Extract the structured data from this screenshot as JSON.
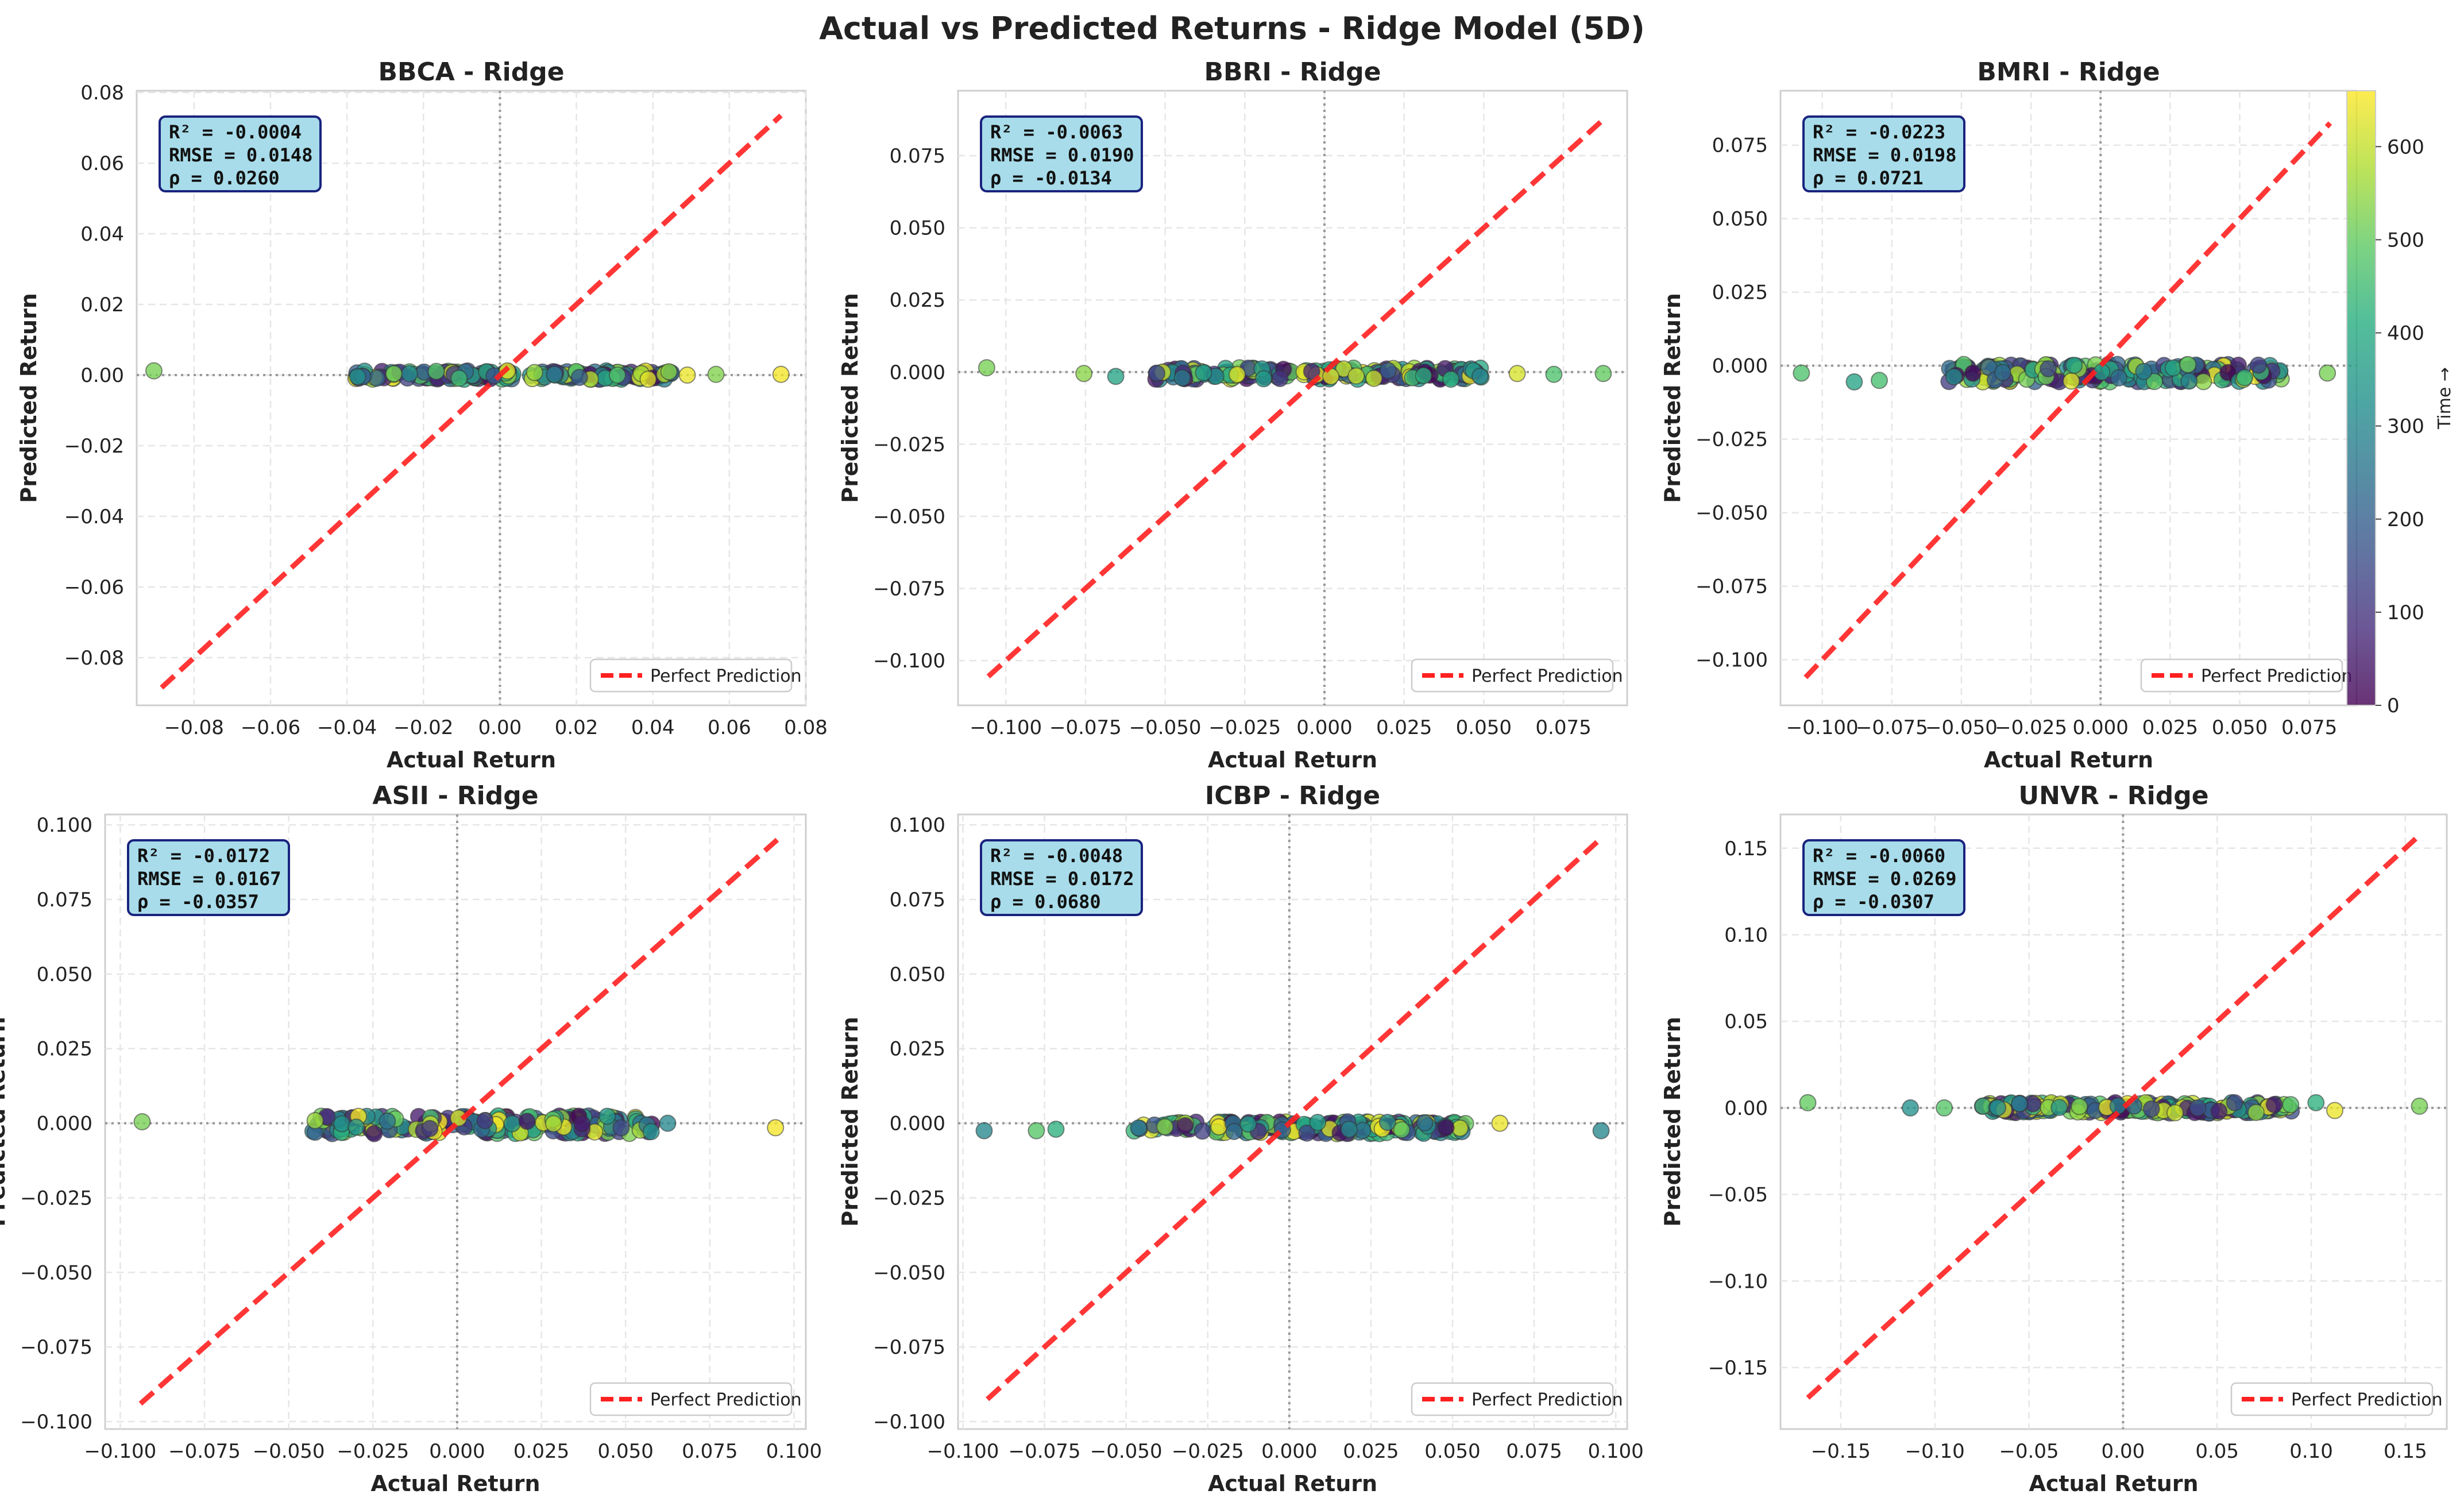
{
  "title": "Actual vs Predicted Returns - Ridge Model (5D)",
  "colors": {
    "perfect_line": "#ff2020",
    "stats_box_fill": "#a8dcea",
    "stats_box_edge": "#1a237e",
    "grid": "#e6e6e6",
    "zero_line": "#999999"
  },
  "colorbar": {
    "label": "Time →",
    "ticks": [
      0,
      100,
      200,
      300,
      400,
      500,
      600
    ],
    "range": [
      0,
      660
    ],
    "colormap": "viridis"
  },
  "chart_data": [
    {
      "type": "scatter",
      "title": "BBCA - Ridge",
      "xlabel": "Actual Return",
      "ylabel": "Predicted Return",
      "xlim": [
        -0.095,
        0.08
      ],
      "ylim": [
        -0.0935,
        0.0805
      ],
      "xticks": [
        "−0.08",
        "−0.06",
        "−0.04",
        "−0.02",
        "0.00",
        "0.02",
        "0.04",
        "0.06",
        "0.08"
      ],
      "xtick_values": [
        -0.08,
        -0.06,
        -0.04,
        -0.02,
        0.0,
        0.02,
        0.04,
        0.06,
        0.08
      ],
      "yticks": [
        "0.08",
        "0.06",
        "0.04",
        "0.02",
        "0.00",
        "−0.02",
        "−0.04",
        "−0.06",
        "−0.08"
      ],
      "ytick_values": [
        0.08,
        0.06,
        0.04,
        0.02,
        0.0,
        -0.02,
        -0.04,
        -0.06,
        -0.08
      ],
      "perfect_line": [
        -0.0885,
        0.0735
      ],
      "legend": "Perfect Prediction",
      "stats": [
        "R² = -0.0004",
        "RMSE = 0.0148",
        "ρ = 0.0260"
      ],
      "cluster": {
        "x_range": [
          -0.038,
          0.045
        ],
        "y_center": 0.0,
        "y_spread": 0.0012
      },
      "outliers": [
        [
          -0.0905,
          0.0012,
          520
        ],
        [
          0.049,
          0.0,
          640
        ],
        [
          0.0565,
          0.0002,
          530
        ],
        [
          0.0735,
          0.0002,
          650
        ]
      ]
    },
    {
      "type": "scatter",
      "title": "BBRI - Ridge",
      "xlabel": "Actual Return",
      "ylabel": "Predicted Return",
      "xlim": [
        -0.115,
        0.095
      ],
      "ylim": [
        -0.1155,
        0.0975
      ],
      "xticks": [
        "−0.100",
        "−0.075",
        "−0.050",
        "−0.025",
        "0.000",
        "0.025",
        "0.050",
        "0.075"
      ],
      "xtick_values": [
        -0.1,
        -0.075,
        -0.05,
        -0.025,
        0.0,
        0.025,
        0.05,
        0.075
      ],
      "yticks": [
        "0.075",
        "0.050",
        "0.025",
        "0.000",
        "−0.025",
        "−0.050",
        "−0.075",
        "−0.100"
      ],
      "ytick_values": [
        0.075,
        0.05,
        0.025,
        0.0,
        -0.025,
        -0.05,
        -0.075,
        -0.1
      ],
      "perfect_line": [
        -0.1055,
        0.0885
      ],
      "legend": "Perfect Prediction",
      "stats": [
        "R² = -0.0063",
        "RMSE = 0.0190",
        "ρ = -0.0134"
      ],
      "cluster": {
        "x_range": [
          -0.053,
          0.052
        ],
        "y_center": -0.0005,
        "y_spread": 0.002
      },
      "outliers": [
        [
          -0.106,
          0.0015,
          520
        ],
        [
          -0.0755,
          -0.0005,
          540
        ],
        [
          -0.0655,
          -0.0015,
          380
        ],
        [
          0.0605,
          -0.0005,
          620
        ],
        [
          0.072,
          -0.0008,
          470
        ],
        [
          0.0875,
          -0.0005,
          500
        ]
      ]
    },
    {
      "type": "scatter",
      "title": "BMRI - Ridge",
      "xlabel": "Actual Return",
      "ylabel": "Predicted Return",
      "xlim": [
        -0.115,
        0.092
      ],
      "ylim": [
        -0.1155,
        0.0935
      ],
      "xticks": [
        "−0.100",
        "−0.075",
        "−0.050",
        "−0.025",
        "0.000",
        "0.025",
        "0.050",
        "0.075"
      ],
      "xtick_values": [
        -0.1,
        -0.075,
        -0.05,
        -0.025,
        0.0,
        0.025,
        0.05,
        0.075
      ],
      "yticks": [
        "0.075",
        "0.050",
        "0.025",
        "0.000",
        "−0.025",
        "−0.050",
        "−0.075",
        "−0.100"
      ],
      "ytick_values": [
        0.075,
        0.05,
        0.025,
        0.0,
        -0.025,
        -0.05,
        -0.075,
        -0.1
      ],
      "perfect_line": [
        -0.106,
        0.0825
      ],
      "legend": "Perfect Prediction",
      "stats": [
        "R² = -0.0223",
        "RMSE = 0.0198",
        "ρ = 0.0721"
      ],
      "cluster": {
        "x_range": [
          -0.055,
          0.065
        ],
        "y_center": -0.0025,
        "y_spread": 0.003
      },
      "outliers": [
        [
          -0.1075,
          -0.0025,
          470
        ],
        [
          -0.0885,
          -0.0055,
          380
        ],
        [
          -0.0795,
          -0.005,
          460
        ],
        [
          0.0815,
          -0.0025,
          520
        ]
      ]
    },
    {
      "type": "scatter",
      "title": "ASII - Ridge",
      "xlabel": "Actual Return",
      "ylabel": "Predicted Return",
      "xlim": [
        -0.1045,
        0.1035
      ],
      "ylim": [
        -0.1025,
        0.1035
      ],
      "xticks": [
        "−0.100",
        "−0.075",
        "−0.050",
        "−0.025",
        "0.000",
        "0.025",
        "0.050",
        "0.075",
        "0.100"
      ],
      "xtick_values": [
        -0.1,
        -0.075,
        -0.05,
        -0.025,
        0.0,
        0.025,
        0.05,
        0.075,
        0.1
      ],
      "yticks": [
        "0.100",
        "0.075",
        "0.050",
        "0.025",
        "0.000",
        "−0.025",
        "−0.050",
        "−0.075",
        "−0.100"
      ],
      "ytick_values": [
        0.1,
        0.075,
        0.05,
        0.025,
        0.0,
        -0.025,
        -0.05,
        -0.075,
        -0.1
      ],
      "perfect_line": [
        -0.094,
        0.095
      ],
      "legend": "Perfect Prediction",
      "stats": [
        "R² = -0.0172",
        "RMSE = 0.0167",
        "ρ = -0.0357"
      ],
      "cluster": {
        "x_range": [
          -0.043,
          0.058
        ],
        "y_center": -0.0005,
        "y_spread": 0.003
      },
      "outliers": [
        [
          -0.0935,
          0.0005,
          520
        ],
        [
          0.0625,
          0.0,
          300
        ],
        [
          0.0945,
          -0.0015,
          650
        ]
      ]
    },
    {
      "type": "scatter",
      "title": "ICBP - Ridge",
      "xlabel": "Actual Return",
      "ylabel": "Predicted Return",
      "xlim": [
        -0.1015,
        0.1035
      ],
      "ylim": [
        -0.1025,
        0.1035
      ],
      "xticks": [
        "−0.100",
        "−0.075",
        "−0.050",
        "−0.025",
        "0.000",
        "0.025",
        "0.050",
        "0.075",
        "0.100"
      ],
      "xtick_values": [
        -0.1,
        -0.075,
        -0.05,
        -0.025,
        0.0,
        0.025,
        0.05,
        0.075,
        0.1
      ],
      "yticks": [
        "0.100",
        "0.075",
        "0.050",
        "0.025",
        "0.000",
        "−0.025",
        "−0.050",
        "−0.075",
        "−0.100"
      ],
      "ytick_values": [
        0.1,
        0.075,
        0.05,
        0.025,
        0.0,
        -0.025,
        -0.05,
        -0.075,
        -0.1
      ],
      "perfect_line": [
        -0.0925,
        0.0955
      ],
      "legend": "Perfect Prediction",
      "stats": [
        "R² = -0.0048",
        "RMSE = 0.0172",
        "ρ = 0.0680"
      ],
      "cluster": {
        "x_range": [
          -0.048,
          0.055
        ],
        "y_center": -0.0015,
        "y_spread": 0.002
      },
      "outliers": [
        [
          -0.0935,
          -0.0025,
          300
        ],
        [
          -0.0775,
          -0.0025,
          480
        ],
        [
          -0.0715,
          -0.002,
          420
        ],
        [
          0.0645,
          0.0,
          640
        ],
        [
          0.0955,
          -0.0025,
          300
        ]
      ]
    },
    {
      "type": "scatter",
      "title": "UNVR - Ridge",
      "xlabel": "Actual Return",
      "ylabel": "Predicted Return",
      "xlim": [
        -0.182,
        0.172
      ],
      "ylim": [
        -0.1855,
        0.1695
      ],
      "xticks": [
        "−0.15",
        "−0.10",
        "−0.05",
        "0.00",
        "0.05",
        "0.10",
        "0.15"
      ],
      "xtick_values": [
        -0.15,
        -0.1,
        -0.05,
        0.0,
        0.05,
        0.1,
        0.15
      ],
      "yticks": [
        "0.15",
        "0.10",
        "0.05",
        "0.00",
        "−0.05",
        "−0.10",
        "−0.15"
      ],
      "ytick_values": [
        0.15,
        0.1,
        0.05,
        0.0,
        -0.05,
        -0.1,
        -0.15
      ],
      "perfect_line": [
        -0.1675,
        0.1575
      ],
      "legend": "Perfect Prediction",
      "stats": [
        "R² = -0.0060",
        "RMSE = 0.0269",
        "ρ = -0.0307"
      ],
      "cluster": {
        "x_range": [
          -0.075,
          0.09
        ],
        "y_center": 0.0,
        "y_spread": 0.003
      },
      "outliers": [
        [
          -0.1675,
          0.003,
          500
        ],
        [
          -0.113,
          0.0,
          330
        ],
        [
          -0.095,
          0.0,
          480
        ],
        [
          0.1025,
          0.003,
          420
        ],
        [
          0.1125,
          -0.0015,
          640
        ],
        [
          0.1575,
          0.001,
          520
        ]
      ]
    }
  ]
}
